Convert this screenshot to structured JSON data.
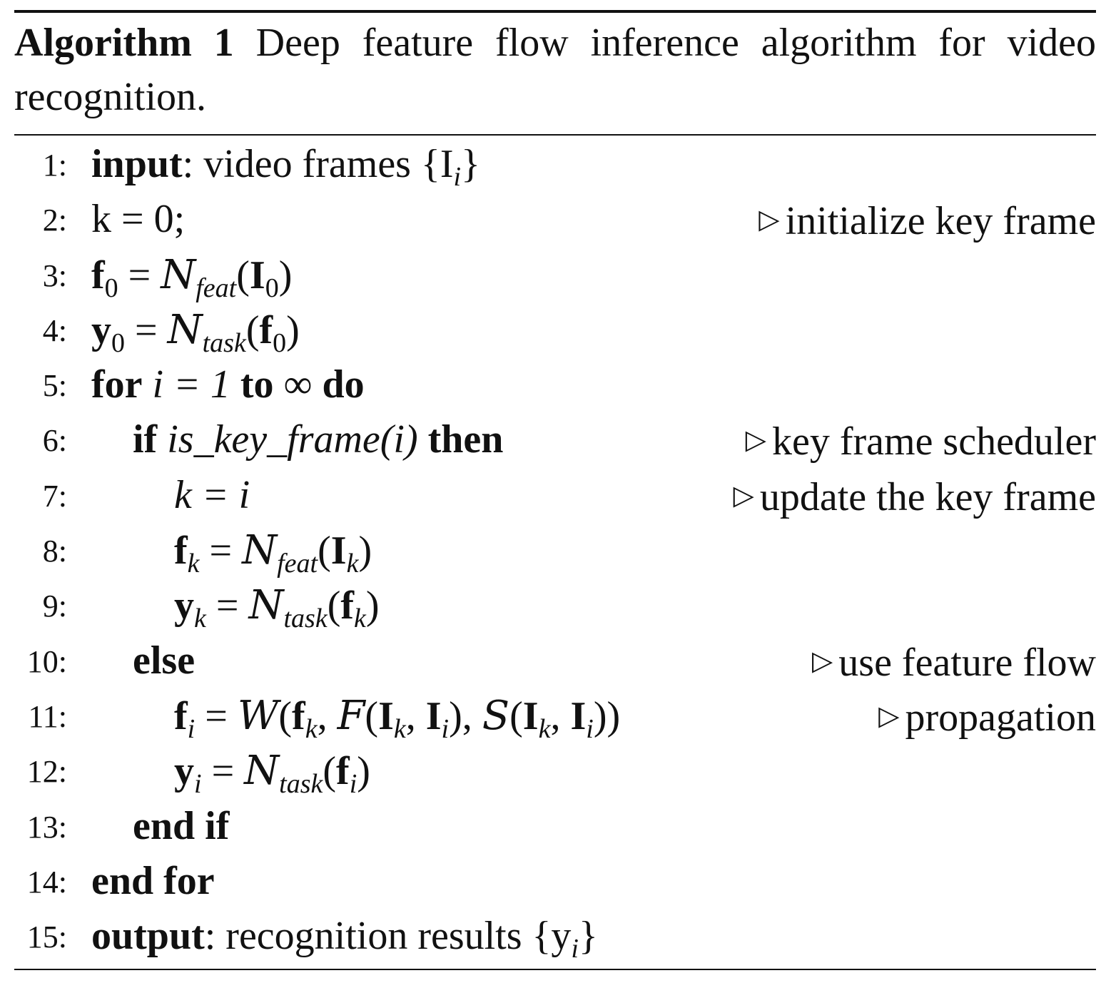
{
  "caption": {
    "label": "Algorithm 1",
    "text": "Deep feature flow inference algorithm for video recognition."
  },
  "lines": [
    {
      "no": "1:",
      "kw": "input",
      "text": ": video frames {I",
      "sub": "i",
      "tail": "}"
    },
    {
      "no": "2:",
      "code": "k = 0;",
      "comment": "initialize key frame"
    },
    {
      "no": "3:",
      "lhs": "f",
      "lhs_sub": "0",
      "fn": "N",
      "fn_sub": "feat",
      "arg": "I",
      "arg_sub": "0"
    },
    {
      "no": "4:",
      "lhs": "y",
      "lhs_sub": "0",
      "fn": "N",
      "fn_sub": "task",
      "arg": "f",
      "arg_sub": "0"
    },
    {
      "no": "5:",
      "kw1": "for",
      "mid": "i = 1",
      "kw2": "to",
      "inf": "∞",
      "kw3": "do"
    },
    {
      "no": "6:",
      "kw1": "if",
      "mid": "is_key_frame(i)",
      "kw2": "then",
      "comment": "key frame scheduler"
    },
    {
      "no": "7:",
      "code": "k = i",
      "comment": "update the key frame"
    },
    {
      "no": "8:",
      "lhs": "f",
      "lhs_sub": "k",
      "fn": "N",
      "fn_sub": "feat",
      "arg": "I",
      "arg_sub": "k"
    },
    {
      "no": "9:",
      "lhs": "y",
      "lhs_sub": "k",
      "fn": "N",
      "fn_sub": "task",
      "arg": "f",
      "arg_sub": "k"
    },
    {
      "no": "10:",
      "kw": "else",
      "comment": "use feature flow"
    },
    {
      "no": "11:",
      "comment": "propagation"
    },
    {
      "no": "12:",
      "lhs": "y",
      "lhs_sub": "i",
      "fn": "N",
      "fn_sub": "task",
      "arg": "f",
      "arg_sub": "i"
    },
    {
      "no": "13:",
      "kw": "end if"
    },
    {
      "no": "14:",
      "kw": "end for"
    },
    {
      "no": "15:",
      "kw": "output",
      "text": ": recognition results {y",
      "sub": "i",
      "tail": "}"
    }
  ]
}
